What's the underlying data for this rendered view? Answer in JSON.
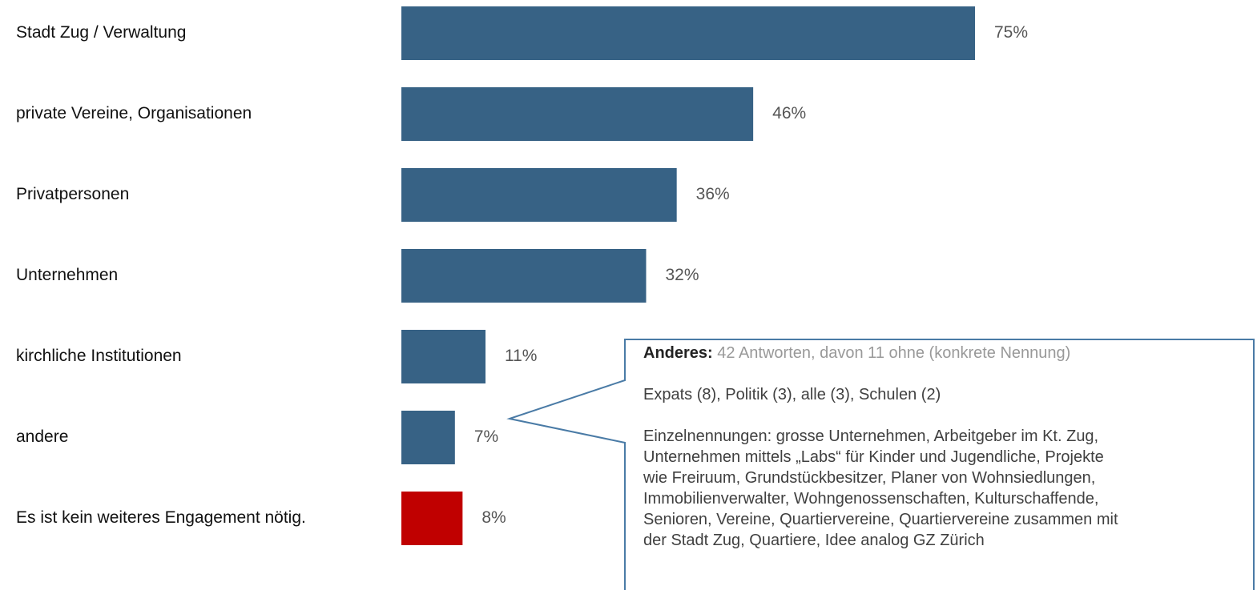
{
  "chart_data": {
    "type": "hbar",
    "categories": [
      "Stadt Zug / Verwaltung",
      "private Vereine, Organisationen",
      "Privatpersonen",
      "Unternehmen",
      "kirchliche Institutionen",
      "andere",
      "Es ist kein weiteres Engagement nötig."
    ],
    "values": [
      75,
      46,
      36,
      32,
      11,
      7,
      8
    ],
    "value_labels": [
      "75%",
      "46%",
      "36%",
      "32%",
      "11%",
      "7%",
      "8%"
    ],
    "colors": [
      "#376285",
      "#376285",
      "#376285",
      "#376285",
      "#376285",
      "#376285",
      "#c00000"
    ],
    "annotation": {
      "heading": "Anderes:",
      "summary": "42 Antworten, davon 11 ohne (konkrete Nennung)",
      "counts": "Expats (8), Politik (3), alle (3), Schulen (2)",
      "details": [
        "Einzelnennungen: grosse Unternehmen, Arbeitgeber im Kt. Zug,",
        "Unternehmen mittels „Labs“ für Kinder und Jugendliche, Projekte",
        "wie Freiruum, Grundstückbesitzer, Planer von Wohnsiedlungen,",
        "Immobilienverwalter, Wohngenossenschaften, Kulturschaffende,",
        "Senioren, Vereine, Quartiervereine, Quartiervereine zusammen mit",
        "der Stadt Zug, Quartiere, Idee analog GZ Zürich"
      ]
    }
  }
}
